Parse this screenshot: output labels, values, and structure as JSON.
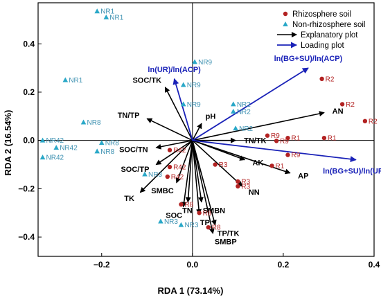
{
  "chart_data": {
    "type": "scatter",
    "xlabel": "RDA 1 (73.14%)",
    "ylabel": "RDA 2 (16.54%)",
    "xlim": [
      -0.34,
      0.4
    ],
    "ylim": [
      -0.48,
      0.57
    ],
    "xticks": [
      -0.2,
      0.0,
      0.2,
      0.4
    ],
    "yticks": [
      -0.4,
      -0.2,
      0.0,
      0.2,
      0.4
    ],
    "xtick_labels": [
      "−0.2",
      "0.0",
      "0.2",
      "0.4"
    ],
    "ytick_labels": [
      "−0.4",
      "−0.2",
      "0.0",
      "0.2",
      "0.4"
    ],
    "grid": false,
    "legend_position": "top-right",
    "colors": {
      "rhizosphere": "#b22222",
      "rhizosphere_label": "#b22222",
      "non_rhizosphere": "#2aa8c8",
      "non_rhizosphere_label": "#3a8fb0",
      "explanatory": "#000000",
      "loading": "#1a22b8",
      "axis": "#000000"
    },
    "legend": [
      {
        "label": "Rhizosphere soil",
        "kind": "circle"
      },
      {
        "label": "Non-rhizosphere soil",
        "kind": "triangle"
      },
      {
        "label": "Explanatory plot",
        "kind": "arrow-black"
      },
      {
        "label": "Loading plot",
        "kind": "arrow-blue"
      }
    ],
    "series": [
      {
        "name": "Rhizosphere soil",
        "points": [
          {
            "label": "R2",
            "x": 0.285,
            "y": 0.255
          },
          {
            "label": "R2",
            "x": 0.33,
            "y": 0.15
          },
          {
            "label": "R2",
            "x": 0.38,
            "y": 0.08
          },
          {
            "label": "R1",
            "x": 0.29,
            "y": 0.01
          },
          {
            "label": "R1",
            "x": 0.21,
            "y": 0.01
          },
          {
            "label": "R9",
            "x": 0.165,
            "y": 0.02
          },
          {
            "label": "R9",
            "x": 0.185,
            "y": -0.002
          },
          {
            "label": "R9",
            "x": 0.21,
            "y": -0.06
          },
          {
            "label": "R1",
            "x": 0.175,
            "y": -0.105
          },
          {
            "label": "R3",
            "x": 0.05,
            "y": -0.1
          },
          {
            "label": "R3",
            "x": 0.1,
            "y": -0.17
          },
          {
            "label": "R3",
            "x": 0.1,
            "y": -0.19
          },
          {
            "label": "R42",
            "x": -0.05,
            "y": -0.04
          },
          {
            "label": "R42",
            "x": -0.05,
            "y": -0.11
          },
          {
            "label": "R42",
            "x": -0.055,
            "y": -0.15
          },
          {
            "label": "R8",
            "x": -0.025,
            "y": -0.265
          },
          {
            "label": "R8",
            "x": 0.015,
            "y": -0.3
          },
          {
            "label": "R8",
            "x": 0.035,
            "y": -0.36
          }
        ]
      },
      {
        "name": "Non-rhizosphere soil",
        "points": [
          {
            "label": "NR1",
            "x": -0.21,
            "y": 0.535
          },
          {
            "label": "NR1",
            "x": -0.19,
            "y": 0.51
          },
          {
            "label": "NR1",
            "x": -0.28,
            "y": 0.25
          },
          {
            "label": "NR9",
            "x": 0.005,
            "y": 0.325
          },
          {
            "label": "NR9",
            "x": -0.02,
            "y": 0.23
          },
          {
            "label": "NR9",
            "x": -0.02,
            "y": 0.15
          },
          {
            "label": "NR2",
            "x": 0.09,
            "y": 0.15
          },
          {
            "label": "NR2",
            "x": 0.09,
            "y": 0.12
          },
          {
            "label": "NR2",
            "x": 0.095,
            "y": 0.05
          },
          {
            "label": "NR8",
            "x": -0.24,
            "y": 0.075
          },
          {
            "label": "NR8",
            "x": -0.2,
            "y": -0.01
          },
          {
            "label": "NR8",
            "x": -0.21,
            "y": -0.045
          },
          {
            "label": "NR42",
            "x": -0.33,
            "y": 0.0
          },
          {
            "label": "NR42",
            "x": -0.3,
            "y": -0.03
          },
          {
            "label": "NR42",
            "x": -0.33,
            "y": -0.07
          },
          {
            "label": "NR3",
            "x": -0.105,
            "y": -0.14
          },
          {
            "label": "NR3",
            "x": -0.07,
            "y": -0.335
          },
          {
            "label": "NR3",
            "x": -0.025,
            "y": -0.35
          }
        ]
      }
    ],
    "explanatory_vectors": [
      {
        "label": "SOC/TK",
        "x": -0.06,
        "y": 0.22
      },
      {
        "label": "TN/TP",
        "x": -0.1,
        "y": 0.09
      },
      {
        "label": "pH",
        "x": 0.02,
        "y": 0.07
      },
      {
        "label": "AN",
        "x": 0.29,
        "y": 0.115
      },
      {
        "label": "TN/TK",
        "x": 0.095,
        "y": 0.0
      },
      {
        "label": "SOC/TN",
        "x": -0.08,
        "y": -0.03
      },
      {
        "label": "AK",
        "x": 0.115,
        "y": -0.08
      },
      {
        "label": "AP",
        "x": 0.215,
        "y": -0.135
      },
      {
        "label": "SOC/TP",
        "x": -0.08,
        "y": -0.1
      },
      {
        "label": "SMBC",
        "x": -0.035,
        "y": -0.175
      },
      {
        "label": "TK",
        "x": -0.115,
        "y": -0.215
      },
      {
        "label": "NN",
        "x": 0.11,
        "y": -0.19
      },
      {
        "label": "TN",
        "x": -0.01,
        "y": -0.255
      },
      {
        "label": "SOC",
        "x": -0.02,
        "y": -0.275
      },
      {
        "label": "SMBN",
        "x": 0.02,
        "y": -0.255
      },
      {
        "label": "TP",
        "x": 0.015,
        "y": -0.305
      },
      {
        "label": "TP/TK",
        "x": 0.05,
        "y": -0.35
      },
      {
        "label": "SMBP",
        "x": 0.045,
        "y": -0.385
      }
    ],
    "loading_vectors": [
      {
        "label": "ln(BG+SU)/ln(ACP)",
        "x": 0.255,
        "y": 0.3
      },
      {
        "label": "ln(UR)/ln(ACP)",
        "x": -0.04,
        "y": 0.255
      },
      {
        "label": "ln(BG+SU)/ln(UR)",
        "x": 0.36,
        "y": -0.08
      }
    ]
  }
}
